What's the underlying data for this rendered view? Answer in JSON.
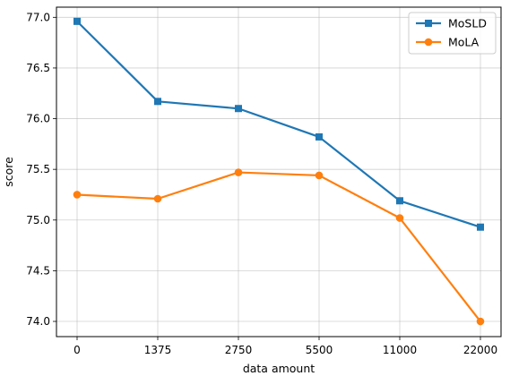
{
  "chart_data": {
    "type": "line",
    "xlabel": "data amount",
    "ylabel": "score",
    "categories": [
      "0",
      "1375",
      "2750",
      "5500",
      "11000",
      "22000"
    ],
    "ylim": [
      73.85,
      77.1
    ],
    "yticks": [
      "74.0",
      "74.5",
      "75.0",
      "75.5",
      "76.0",
      "76.5",
      "77.0"
    ],
    "grid": true,
    "legend_position": "top-right",
    "series": [
      {
        "name": "MoSLD",
        "color": "#1f77b4",
        "marker": "square",
        "values": [
          76.96,
          76.17,
          76.1,
          75.82,
          75.19,
          74.93
        ]
      },
      {
        "name": "MoLA",
        "color": "#ff7f0e",
        "marker": "circle",
        "values": [
          75.25,
          75.21,
          75.47,
          75.44,
          75.02,
          74.0
        ]
      }
    ]
  }
}
